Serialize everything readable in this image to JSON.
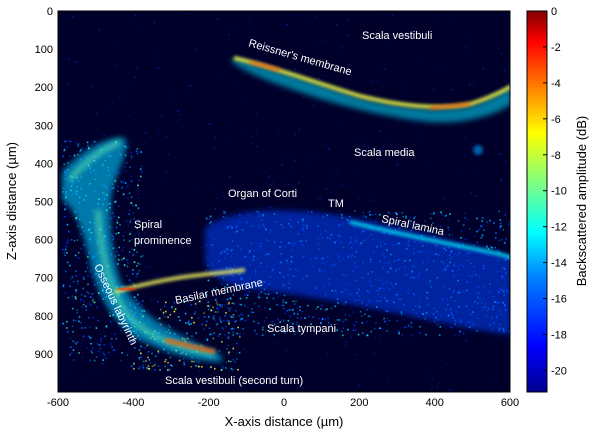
{
  "figure": {
    "xlabel": "X-axis distance (µm)",
    "ylabel": "Z-axis distance (µm)",
    "colorbar_label": "Backscattered amplitude (dB)",
    "x_ticks": [
      "-600",
      "-400",
      "-200",
      "0",
      "200",
      "400",
      "600"
    ],
    "y_ticks": [
      "0",
      "100",
      "200",
      "300",
      "400",
      "500",
      "600",
      "700",
      "800",
      "900"
    ],
    "colorbar_ticks": [
      "0",
      "-2",
      "-4",
      "-6",
      "-8",
      "-10",
      "-12",
      "-14",
      "-16",
      "-18",
      "-20"
    ],
    "colormap": [
      "#00008f",
      "#0000ff",
      "#0080ff",
      "#00ffff",
      "#80ff80",
      "#ffff00",
      "#ff8000",
      "#ff0000",
      "#800000"
    ],
    "annotations": {
      "scala_vestibuli": "Scala vestibuli",
      "reissners_membrane": "Reissner's membrane",
      "scala_media": "Scala media",
      "organ_of_corti": "Organ of Corti",
      "tm": "TM",
      "spiral_lamina": "Spiral lamina",
      "spiral_prominence_1": "Spiral",
      "spiral_prominence_2": "prominence",
      "osseous_labyrinth": "Osseous labyrinth",
      "basilar_membrane": "Basilar membrane",
      "scala_tympani": "Scala tympani",
      "scala_vestibuli_second_turn": "Scala vestibuli (second turn)"
    }
  }
}
